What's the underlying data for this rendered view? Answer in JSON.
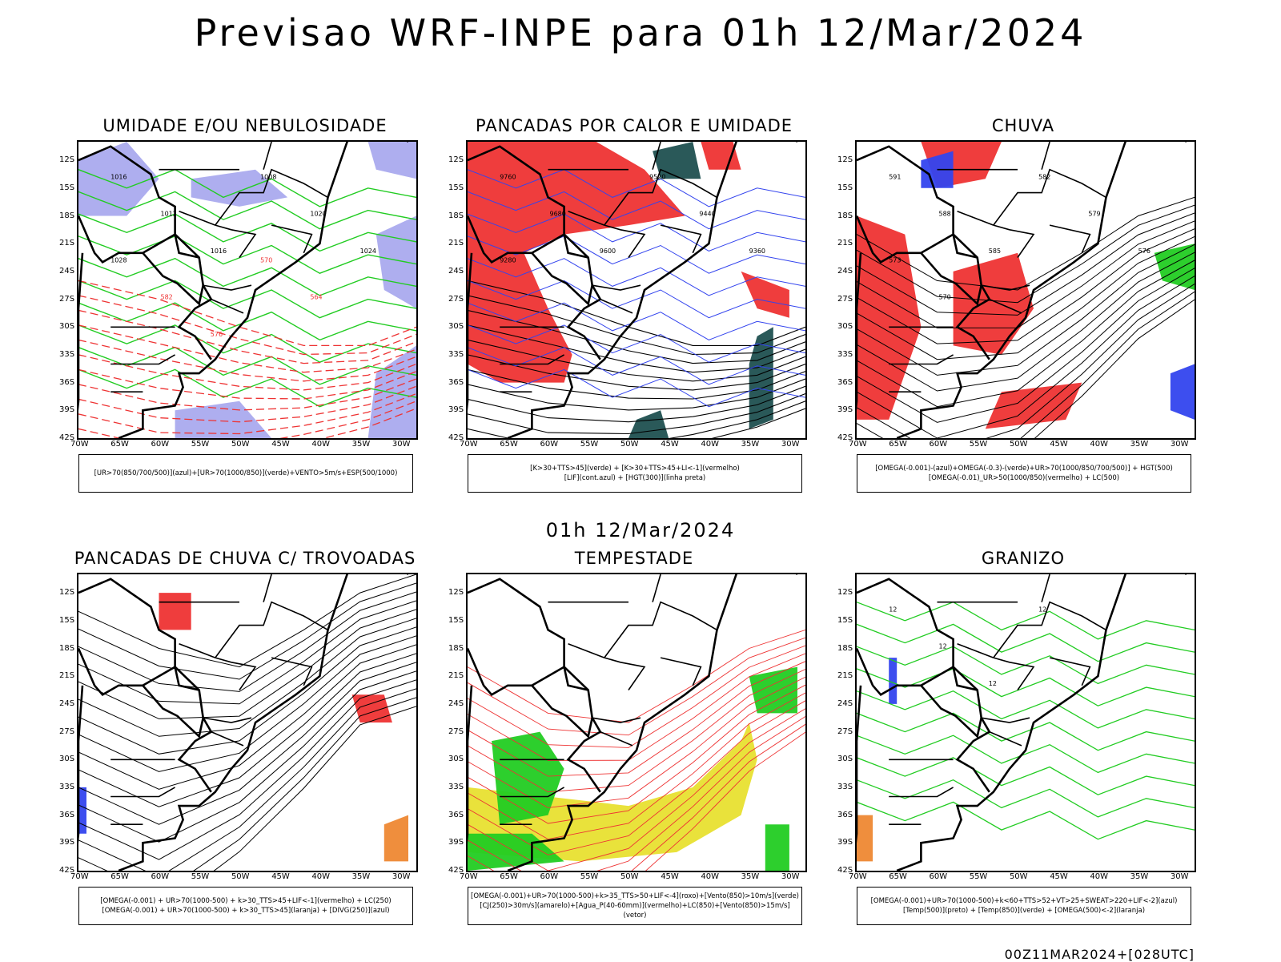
{
  "page": {
    "main_title": "Previsao WRF-INPE  para 01h 12/Mar/2024",
    "mid_date": "01h 12/Mar/2024",
    "footer_stamp": "00Z11MAR2024+[028UTC]"
  },
  "axes": {
    "lat_labels": [
      "12S",
      "15S",
      "18S",
      "21S",
      "24S",
      "27S",
      "30S",
      "33S",
      "36S",
      "39S",
      "42S"
    ],
    "lon_labels": [
      "70W",
      "65W",
      "60W",
      "55W",
      "50W",
      "45W",
      "40W",
      "35W",
      "30W"
    ]
  },
  "colors": {
    "green": "#22cc22",
    "red": "#ee3333",
    "blue": "#3344ee",
    "lavender": "#aaaaee",
    "darkteal": "#1f5050",
    "yellow": "#e8e030",
    "orange": "#ee8833"
  },
  "panels": [
    {
      "title": "UMIDADE E/OU NEBULOSIDADE",
      "legend": [
        "[UR>70(850/700/500)](azul)+[UR>70(1000/850)](verde)+VENTO>5m/s+ESP(500/1000)"
      ],
      "contour_labels": [
        "1016",
        "1012",
        "1016",
        "1008",
        "1020",
        "1024",
        "1028",
        "582",
        "576",
        "570",
        "564"
      ]
    },
    {
      "title": "PANCADAS POR CALOR E UMIDADE",
      "legend": [
        "[K>30+TTS>45](verde) + [K>30+TTS>45+LI<-1](vermelho)",
        "[LIF](cont.azul) + [HGT(300)](linha preta)"
      ],
      "contour_labels": [
        "9760",
        "9680",
        "9600",
        "9520",
        "9440",
        "9360",
        "9280"
      ]
    },
    {
      "title": "CHUVA",
      "legend": [
        "[OMEGA(-0.001)-(azul)+OMEGA(-0.3)-(verde)+UR>70(1000/850/700/500)] + HGT(500)",
        "[OMEGA(-0.01)_UR>50(1000/850)(vermelho) + LC(500)"
      ],
      "contour_labels": [
        "591",
        "588",
        "585",
        "582",
        "579",
        "576",
        "573",
        "570"
      ]
    },
    {
      "title": "PANCADAS DE CHUVA C/ TROVOADAS",
      "legend": [
        "[OMEGA(-0.001) + UR>70(1000-500) + k>30_TTS>45+LIF<-1](vermelho) + LC(250)",
        "[OMEGA(-0.001) + UR>70(1000-500) + k>30_TTS>45](laranja) + [DIVG(250)](azul)"
      ],
      "contour_labels": []
    },
    {
      "title": "TEMPESTADE",
      "legend": [
        "[OMEGA(-0.001)+UR>70(1000-500)+k>35_TTS>50+LIF<-4](roxo)+[Vento(850)>10m/s](verde)",
        "[CJ(250)>30m/s](amarelo)+[Agua_P(40-60mm)](vermelho)+LC(850)+[Vento(850)>15m/s](vetor)"
      ],
      "contour_labels": []
    },
    {
      "title": "GRANIZO",
      "legend": [
        "[OMEGA(-0.001)+UR>70(1000-500)+k<60+TTS>52+VT>25+SWEAT>220+LIF<-2](azul)",
        "[Temp(500)](preto) + [Temp(850)](verde) + [OMEGA(500)<-2](laranja)"
      ],
      "contour_labels": [
        "12",
        "12",
        "12",
        "12"
      ]
    }
  ]
}
